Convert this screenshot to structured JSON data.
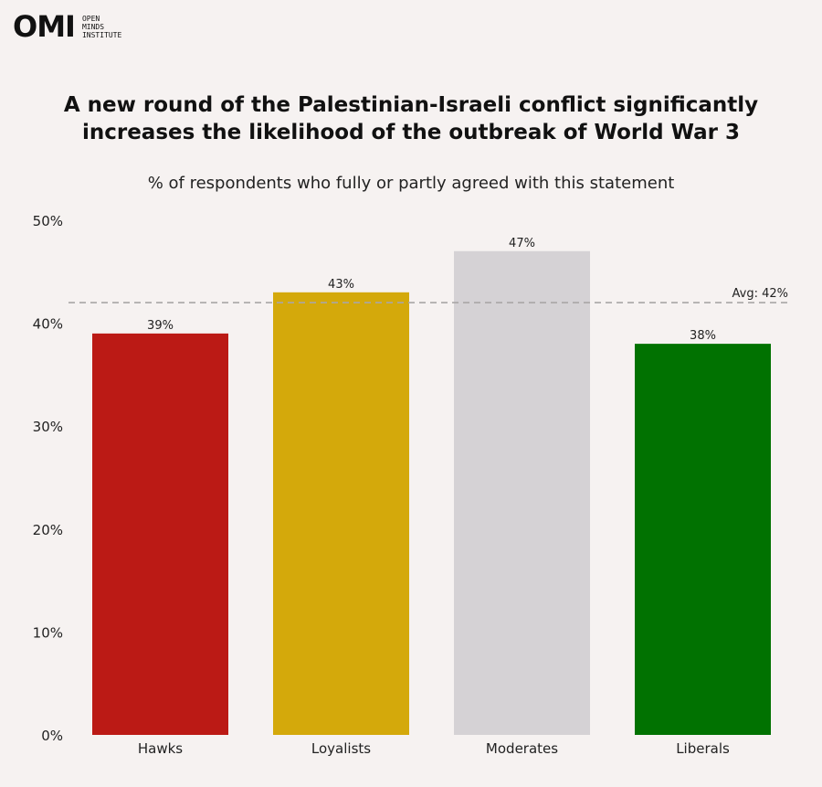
{
  "logo": {
    "mark": "OMI",
    "lines": [
      "OPEN",
      "MINDS",
      "INSTITUTE"
    ]
  },
  "title_line1": "A new round of the Palestinian-Israeli conflict significantly",
  "title_line2": "increases the likelihood of the outbreak of World War 3",
  "subtitle": "% of respondents who fully or partly agreed with this statement",
  "chart_data": {
    "type": "bar",
    "categories": [
      "Hawks",
      "Loyalists",
      "Moderates",
      "Liberals"
    ],
    "values": [
      39,
      43,
      47,
      38
    ],
    "data_labels": [
      "39%",
      "43%",
      "47%",
      "38%"
    ],
    "colors": [
      "#bb1a15",
      "#d4a90b",
      "#d5d2d5",
      "#017201"
    ],
    "ylim": [
      0,
      50
    ],
    "yticks": [
      0,
      10,
      20,
      30,
      40,
      50
    ],
    "ytick_labels": [
      "0%",
      "10%",
      "20%",
      "30%",
      "40%",
      "50%"
    ],
    "average": {
      "value": 42,
      "label": "Avg: 42%",
      "color": "#a9a6a6"
    },
    "grid": false,
    "legend": "none"
  }
}
